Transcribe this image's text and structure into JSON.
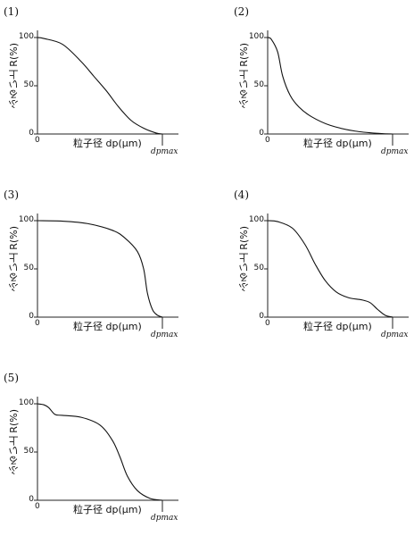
{
  "panels": [
    {
      "label": "(1)",
      "y_axis": "ふるい上 R(%)",
      "x_axis": "粒子径 dp(μm)",
      "y_ticks": [
        "100",
        "50",
        "0"
      ],
      "x_origin": "0",
      "x_max": "dpmax"
    },
    {
      "label": "(2)",
      "y_axis": "ふるい上 R(%)",
      "x_axis": "粒子径 dp(μm)",
      "y_ticks": [
        "100",
        "50",
        "0"
      ],
      "x_origin": "0",
      "x_max": "dpmax"
    },
    {
      "label": "(3)",
      "y_axis": "ふるい上 R(%)",
      "x_axis": "粒子径 dp(μm)",
      "y_ticks": [
        "100",
        "50",
        "0"
      ],
      "x_origin": "0",
      "x_max": "dpmax"
    },
    {
      "label": "(4)",
      "y_axis": "ふるい上 R(%)",
      "x_axis": "粒子径 dp(μm)",
      "y_ticks": [
        "100",
        "50",
        "0"
      ],
      "x_origin": "0",
      "x_max": "dpmax"
    },
    {
      "label": "(5)",
      "y_axis": "ふるい上 R(%)",
      "x_axis": "粒子径 dp(μm)",
      "y_ticks": [
        "100",
        "50",
        "0"
      ],
      "x_origin": "0",
      "x_max": "dpmax"
    }
  ],
  "chart_data": [
    {
      "type": "line",
      "ylim": [
        0,
        100
      ],
      "x": [
        0,
        0.05,
        0.2,
        0.35,
        0.45,
        0.55,
        0.65,
        0.75,
        0.85,
        0.95,
        1.0
      ],
      "y": [
        100,
        99,
        93,
        75,
        60,
        45,
        28,
        14,
        6,
        1,
        0
      ]
    },
    {
      "type": "line",
      "ylim": [
        0,
        100
      ],
      "x": [
        0,
        0.03,
        0.08,
        0.12,
        0.18,
        0.25,
        0.35,
        0.5,
        0.7,
        0.9,
        1.0
      ],
      "y": [
        100,
        98,
        85,
        60,
        40,
        28,
        18,
        9,
        3,
        0.5,
        0
      ]
    },
    {
      "type": "line",
      "ylim": [
        0,
        100
      ],
      "x": [
        0,
        0.2,
        0.4,
        0.6,
        0.7,
        0.8,
        0.85,
        0.88,
        0.92,
        0.96,
        1.0
      ],
      "y": [
        100,
        99.5,
        97,
        90,
        82,
        68,
        50,
        25,
        8,
        2,
        0
      ]
    },
    {
      "type": "line",
      "ylim": [
        0,
        100
      ],
      "x": [
        0,
        0.08,
        0.2,
        0.3,
        0.38,
        0.46,
        0.55,
        0.65,
        0.75,
        0.82,
        0.88,
        0.94,
        1.0
      ],
      "y": [
        100,
        99,
        92,
        75,
        55,
        38,
        26,
        20,
        18,
        15,
        8,
        2,
        0
      ]
    },
    {
      "type": "line",
      "ylim": [
        0,
        100
      ],
      "x": [
        0,
        0.05,
        0.09,
        0.14,
        0.2,
        0.35,
        0.5,
        0.6,
        0.66,
        0.72,
        0.8,
        0.9,
        1.0
      ],
      "y": [
        100,
        99,
        96,
        89,
        88,
        86,
        78,
        62,
        45,
        25,
        10,
        2,
        0
      ]
    }
  ]
}
